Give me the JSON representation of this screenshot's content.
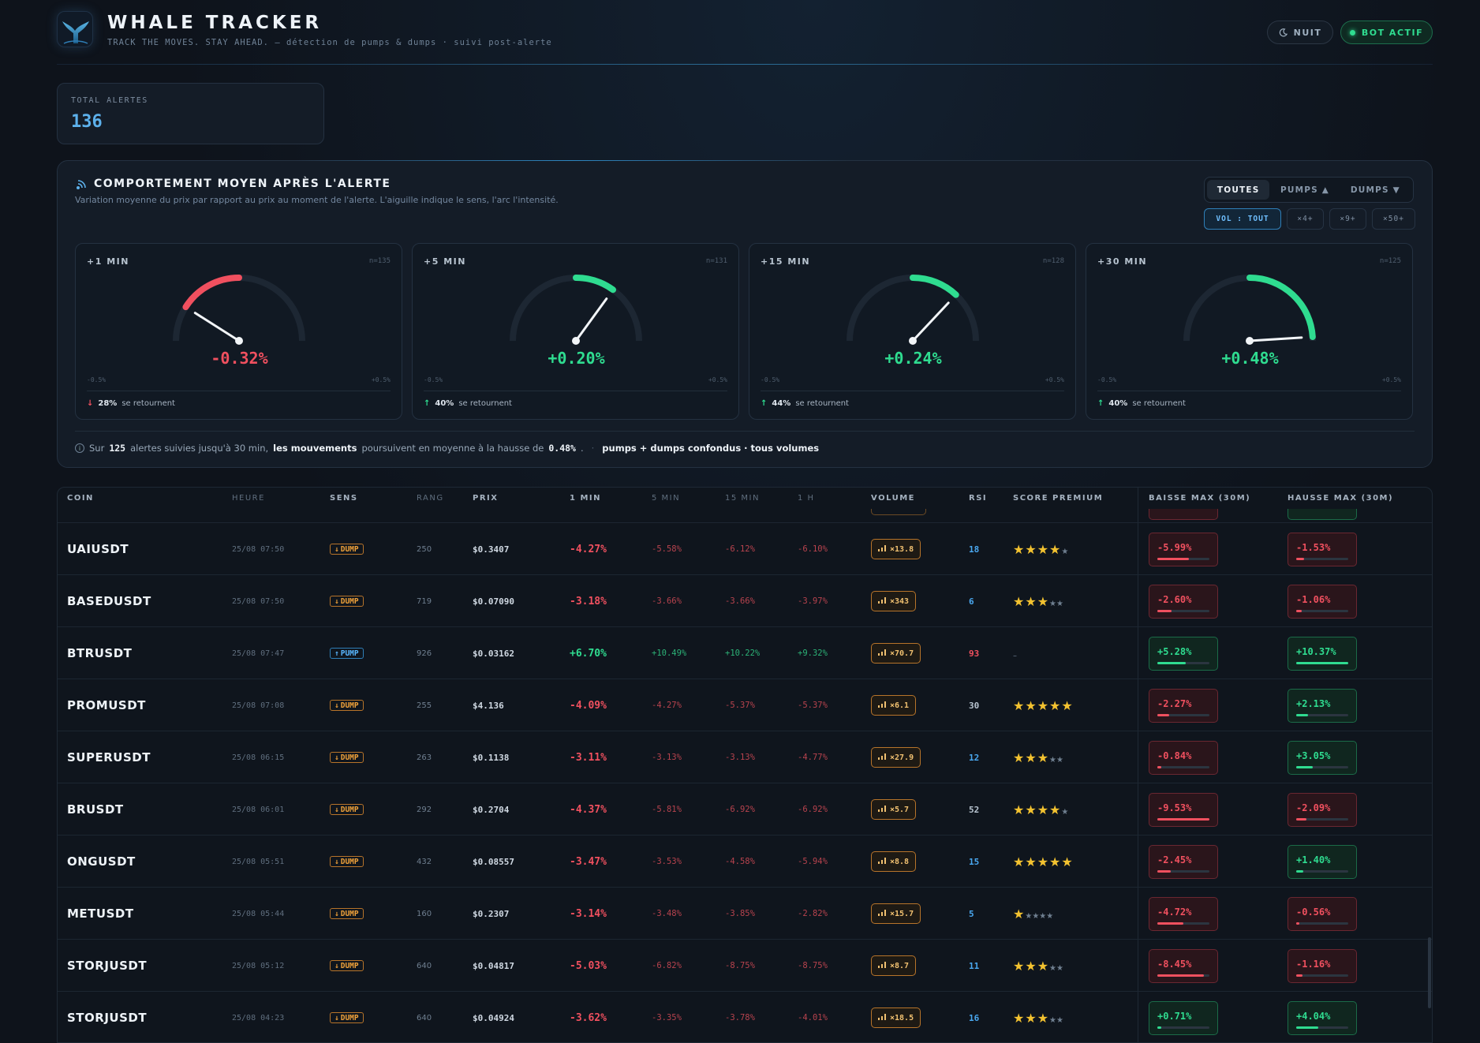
{
  "header": {
    "title": "WHALE TRACKER",
    "subtitle": "TRACK THE MOVES. STAY AHEAD. — détection de pumps & dumps · suivi post-alerte",
    "night_label": "NUIT",
    "bot_label": "BOT ACTIF"
  },
  "total": {
    "label": "TOTAL ALERTES",
    "value": "136"
  },
  "behaviour": {
    "title": "COMPORTEMENT MOYEN APRÈS L'ALERTE",
    "subtitle": "Variation moyenne du prix par rapport au prix au moment de l'alerte. L'aiguille indique le sens, l'arc l'intensité.",
    "filters": [
      "TOUTES",
      "PUMPS ▲",
      "DUMPS ▼"
    ],
    "active_filter": "TOUTES",
    "volume_filters": [
      "VOL : TOUT",
      "×4+",
      "×9+",
      "×50+"
    ],
    "active_volume": "VOL : TOUT",
    "gauges": [
      {
        "label": "+1 MIN",
        "n": "n=135",
        "value": "-0.32%",
        "percent": -0.32,
        "scale": 0.5,
        "min": "-0.5%",
        "max": "+0.5%",
        "reversal": "28%",
        "reversal_text": "se retournent",
        "direction": "down"
      },
      {
        "label": "+5 MIN",
        "n": "n=131",
        "value": "+0.20%",
        "percent": 0.2,
        "scale": 0.5,
        "min": "-0.5%",
        "max": "+0.5%",
        "reversal": "40%",
        "reversal_text": "se retournent",
        "direction": "up"
      },
      {
        "label": "+15 MIN",
        "n": "n=128",
        "value": "+0.24%",
        "percent": 0.24,
        "scale": 0.5,
        "min": "-0.5%",
        "max": "+0.5%",
        "reversal": "44%",
        "reversal_text": "se retournent",
        "direction": "up"
      },
      {
        "label": "+30 MIN",
        "n": "n=125",
        "value": "+0.48%",
        "percent": 0.48,
        "scale": 0.5,
        "min": "-0.5%",
        "max": "+0.5%",
        "reversal": "40%",
        "reversal_text": "se retournent",
        "direction": "up"
      }
    ],
    "summary": {
      "p1": "Sur",
      "count": "125",
      "p2": "alertes suivies jusqu'à 30 min,",
      "bold": "les mouvements",
      "p3": "poursuivent en moyenne à la hausse de",
      "value": "0.48%",
      "p4": ".",
      "tag": "pumps + dumps confondus · tous volumes"
    }
  },
  "table": {
    "headers": [
      "COIN",
      "HEURE",
      "SENS",
      "RANG",
      "PRIX",
      "1 MIN",
      "5 MIN",
      "15 MIN",
      "1 H",
      "VOLUME",
      "RSI",
      "SCORE PREMIUM",
      "BAISSE MAX (30M)",
      "HAUSSE MAX (30M)"
    ],
    "rows": [
      {
        "coin": "UAIUSDT",
        "time": "25/08 07:50",
        "sens": "DUMP",
        "rang": "250",
        "prix": "$0.3407",
        "m1": "-4.27%",
        "m5": "-5.58%",
        "m15": "-6.12%",
        "h1": "-6.10%",
        "vol": "×13.8",
        "rsi": "18",
        "stars": 4,
        "baisse": "-5.99%",
        "baisse_pct": 0.6,
        "hausse": "-1.53%",
        "hausse_pct": 0.15
      },
      {
        "coin": "BASEDUSDT",
        "time": "25/08 07:50",
        "sens": "DUMP",
        "rang": "719",
        "prix": "$0.07090",
        "m1": "-3.18%",
        "m5": "-3.66%",
        "m15": "-3.66%",
        "h1": "-3.97%",
        "vol": "×343",
        "rsi": "6",
        "stars": 3,
        "baisse": "-2.60%",
        "baisse_pct": 0.27,
        "hausse": "-1.06%",
        "hausse_pct": 0.1
      },
      {
        "coin": "BTRUSDT",
        "time": "25/08 07:47",
        "sens": "PUMP",
        "rang": "926",
        "prix": "$0.03162",
        "m1": "+6.70%",
        "m5": "+10.49%",
        "m15": "+10.22%",
        "h1": "+9.32%",
        "vol": "×70.7",
        "rsi": "93",
        "stars": 0,
        "stars_text": "–",
        "baisse": "+5.28%",
        "baisse_pct": 0.55,
        "hausse": "+10.37%",
        "hausse_pct": 1.0
      },
      {
        "coin": "PROMUSDT",
        "time": "25/08 07:08",
        "sens": "DUMP",
        "rang": "255",
        "prix": "$4.136",
        "m1": "-4.09%",
        "m5": "-4.27%",
        "m15": "-5.37%",
        "h1": "-5.37%",
        "vol": "×6.1",
        "rsi": "30",
        "stars": 5,
        "baisse": "-2.27%",
        "baisse_pct": 0.23,
        "hausse": "+2.13%",
        "hausse_pct": 0.22
      },
      {
        "coin": "SUPERUSDT",
        "time": "25/08 06:15",
        "sens": "DUMP",
        "rang": "263",
        "prix": "$0.1138",
        "m1": "-3.11%",
        "m5": "-3.13%",
        "m15": "-3.13%",
        "h1": "-4.77%",
        "vol": "×27.9",
        "rsi": "12",
        "stars": 3,
        "baisse": "-0.84%",
        "baisse_pct": 0.08,
        "hausse": "+3.05%",
        "hausse_pct": 0.32
      },
      {
        "coin": "BRUSDT",
        "time": "25/08 06:01",
        "sens": "DUMP",
        "rang": "292",
        "prix": "$0.2704",
        "m1": "-4.37%",
        "m5": "-5.81%",
        "m15": "-6.92%",
        "h1": "-6.92%",
        "vol": "×5.7",
        "rsi": "52",
        "stars": 4,
        "baisse": "-9.53%",
        "baisse_pct": 1.0,
        "hausse": "-2.09%",
        "hausse_pct": 0.2
      },
      {
        "coin": "ONGUSDT",
        "time": "25/08 05:51",
        "sens": "DUMP",
        "rang": "432",
        "prix": "$0.08557",
        "m1": "-3.47%",
        "m5": "-3.53%",
        "m15": "-4.58%",
        "h1": "-5.94%",
        "vol": "×8.8",
        "rsi": "15",
        "stars": 5,
        "baisse": "-2.45%",
        "baisse_pct": 0.25,
        "hausse": "+1.40%",
        "hausse_pct": 0.14
      },
      {
        "coin": "METUSDT",
        "time": "25/08 05:44",
        "sens": "DUMP",
        "rang": "160",
        "prix": "$0.2307",
        "m1": "-3.14%",
        "m5": "-3.48%",
        "m15": "-3.85%",
        "h1": "-2.82%",
        "vol": "×15.7",
        "rsi": "5",
        "stars": 1,
        "baisse": "-4.72%",
        "baisse_pct": 0.5,
        "hausse": "-0.56%",
        "hausse_pct": 0.06
      },
      {
        "coin": "STORJUSDT",
        "time": "25/08 05:12",
        "sens": "DUMP",
        "rang": "640",
        "prix": "$0.04817",
        "m1": "-5.03%",
        "m5": "-6.82%",
        "m15": "-8.75%",
        "h1": "-8.75%",
        "vol": "×8.7",
        "rsi": "11",
        "stars": 3,
        "baisse": "-8.45%",
        "baisse_pct": 0.9,
        "hausse": "-1.16%",
        "hausse_pct": 0.12
      },
      {
        "coin": "STORJUSDT",
        "time": "25/08 04:23",
        "sens": "DUMP",
        "rang": "640",
        "prix": "$0.04924",
        "m1": "-3.62%",
        "m5": "-3.35%",
        "m15": "-3.78%",
        "h1": "-4.01%",
        "vol": "×18.5",
        "rsi": "16",
        "stars": 3,
        "baisse": "+0.71%",
        "baisse_pct": 0.07,
        "hausse": "+4.04%",
        "hausse_pct": 0.42
      }
    ]
  },
  "colors": {
    "red": "#f0505f",
    "green": "#2fdc90",
    "blue": "#5db1ec",
    "amber": "#f0a23a",
    "star": "#f3c230"
  }
}
